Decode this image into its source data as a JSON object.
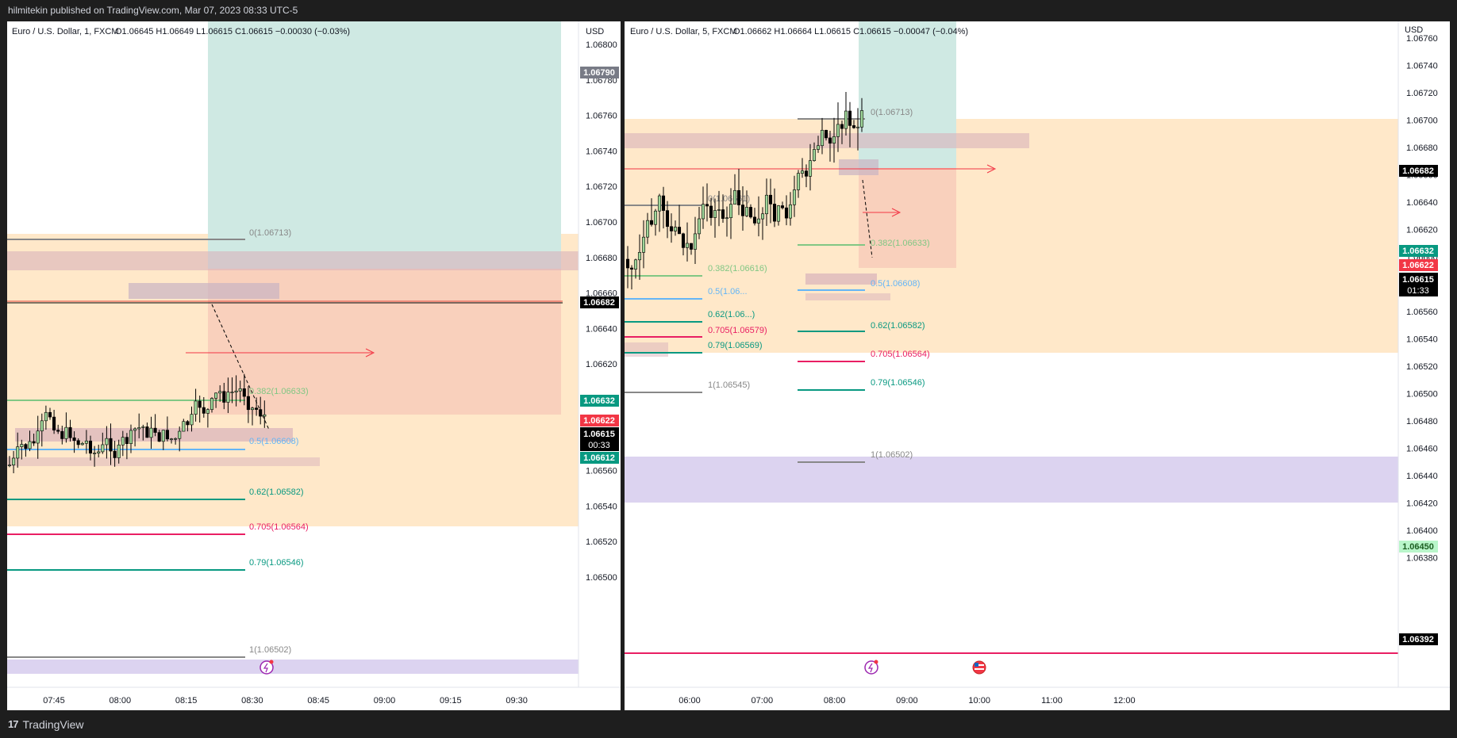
{
  "header": {
    "published_text": "hilmitekin published on TradingView.com, Mar 07, 2023 08:33 UTC-5"
  },
  "footer": {
    "brand": "TradingView",
    "logo_text": "17"
  },
  "left_chart": {
    "legend": "Euro / U.S. Dollar, 1, FXCM",
    "ohlc": "O1.06645  H1.06649  L1.06615  C1.06615  −0.00030 (−0.03%)",
    "currency": "USD",
    "y_ticks": [
      "1.06800",
      "1.06780",
      "1.06760",
      "1.06740",
      "1.06720",
      "1.06700",
      "1.06680",
      "1.06660",
      "1.06640",
      "1.06620",
      "1.06600",
      "1.06580",
      "1.06560",
      "1.06540",
      "1.06520",
      "1.06500"
    ],
    "x_ticks": [
      "07:45",
      "08:00",
      "08:15",
      "08:30",
      "08:45",
      "09:00",
      "09:15",
      "09:30"
    ],
    "fib_labels": [
      "0(1.06713)",
      "0.382(1.06633)",
      "0.5(1.06608)",
      "0.62(1.06582)",
      "0.705(1.06564)",
      "0.79(1.06546)",
      "1(1.06502)"
    ],
    "price_tags": {
      "p1": "1.06790",
      "p2": "1.06682",
      "p3": "1.06632",
      "p4": "1.06622",
      "p5": "1.06615",
      "p5_timer": "00:33",
      "p6": "1.06612"
    }
  },
  "right_chart": {
    "legend": "Euro / U.S. Dollar, 5, FXCM",
    "ohlc": "O1.06662  H1.06664  L1.06615  C1.06615  −0.00047 (−0.04%)",
    "currency": "USD",
    "y_ticks": [
      "1.06760",
      "1.06740",
      "1.06720",
      "1.06700",
      "1.06680",
      "1.06660",
      "1.06640",
      "1.06620",
      "1.06600",
      "1.06580",
      "1.06560",
      "1.06540",
      "1.06520",
      "1.06500",
      "1.06480",
      "1.06460",
      "1.06440",
      "1.06420",
      "1.06400",
      "1.06380"
    ],
    "x_ticks": [
      "06:00",
      "07:00",
      "08:00",
      "09:00",
      "10:00",
      "11:00",
      "12:00"
    ],
    "fib_left_labels": [
      "0(1.06661)",
      "0.382(1.06616)",
      "0.5(1.06...",
      "0.62(1.06...)",
      "0.705(1.06579)",
      "0.79(1.06569)",
      "1(1.06545)"
    ],
    "fib_right_labels": [
      "0(1.06713)",
      "0.382(1.06633)",
      "0.5(1.06608)",
      "0.62(1.06582)",
      "0.705(1.06564)",
      "0.79(1.06546)",
      "1(1.06502)"
    ],
    "price_tags": {
      "p1": "1.06682",
      "p2": "1.06632",
      "p3": "1.06622",
      "p4": "1.06615",
      "p4_timer": "01:33",
      "p5": "1.06450",
      "p6": "1.06392"
    }
  },
  "colors": {
    "bull_candle": "#9fd69a",
    "bear_candle": "#000000",
    "fib_green": "#4caf50",
    "fib_blue": "#2196f3",
    "fib_teal": "#089981",
    "fib_red": "#e91e63",
    "tag_teal": "#089981",
    "tag_red": "#f23645",
    "tag_black": "#000000"
  }
}
